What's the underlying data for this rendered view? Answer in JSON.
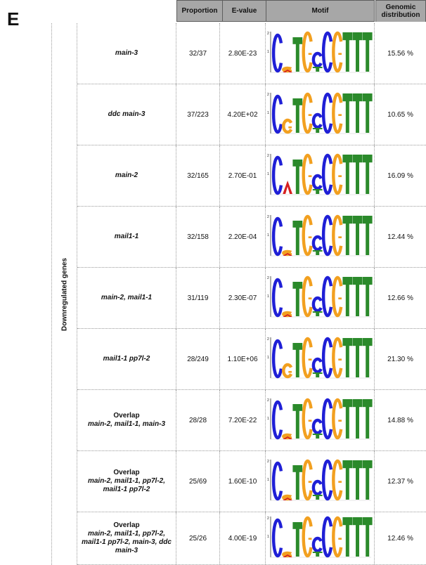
{
  "panel_letter": "E",
  "headers": {
    "proportion": "Proportion",
    "evalue": "E-value",
    "motif": "Motif",
    "genomic_line1": "Genomic",
    "genomic_line2": "distribution"
  },
  "side_label": "Downregulated genes",
  "colors": {
    "C": "#1f1fd6",
    "T": "#2b8a2b",
    "G": "#f2a020",
    "A": "#d62020",
    "header": "#a7a7a7"
  },
  "rows": [
    {
      "title": "",
      "name": "main-3",
      "proportion": "32/37",
      "evalue": "2.80E-23",
      "genomic": "15.56 %",
      "motif": [
        "C",
        "-",
        "T",
        "G",
        "C",
        "C",
        "G",
        "T",
        "T",
        "T"
      ]
    },
    {
      "title": "",
      "name": "ddc main-3",
      "proportion": "37/223",
      "evalue": "4.20E+02",
      "genomic": "10.65 %",
      "motif": [
        "C",
        "G",
        "T",
        "G",
        "C",
        "C",
        "G",
        "T",
        "T",
        "T"
      ]
    },
    {
      "title": "",
      "name": "main-2",
      "proportion": "32/165",
      "evalue": "2.70E-01",
      "genomic": "16.09 %",
      "motif": [
        "C",
        "A",
        "T",
        "G",
        "C",
        "C",
        "G",
        "T",
        "T",
        "T"
      ]
    },
    {
      "title": "",
      "name": "mail1-1",
      "proportion": "32/158",
      "evalue": "2.20E-04",
      "genomic": "12.44 %",
      "motif": [
        "C",
        "-",
        "T",
        "G",
        "C",
        "C",
        "G",
        "T",
        "T",
        "T"
      ]
    },
    {
      "title": "",
      "name": "main-2, mail1-1",
      "proportion": "31/119",
      "evalue": "2.30E-07",
      "genomic": "12.66 %",
      "motif": [
        "C",
        "-",
        "T",
        "G",
        "C",
        "C",
        "G",
        "T",
        "T",
        "T"
      ]
    },
    {
      "title": "",
      "name": "mail1-1 pp7l-2",
      "proportion": "28/249",
      "evalue": "1.10E+06",
      "genomic": "21.30 %",
      "motif": [
        "C",
        "G",
        "T",
        "G",
        "C",
        "C",
        "G",
        "T",
        "T",
        "T"
      ]
    },
    {
      "title": "Overlap",
      "name": "main-2, mail1-1, main-3",
      "proportion": "28/28",
      "evalue": "7.20E-22",
      "genomic": "14.88 %",
      "motif": [
        "C",
        "-",
        "T",
        "G",
        "C",
        "C",
        "G",
        "T",
        "T",
        "T"
      ]
    },
    {
      "title": "Overlap",
      "name": "main-2, mail1-1, pp7l-2, mail1-1 pp7l-2",
      "proportion": "25/69",
      "evalue": "1.60E-10",
      "genomic": "12.37 %",
      "motif": [
        "C",
        "-",
        "T",
        "G",
        "C",
        "C",
        "G",
        "T",
        "T",
        "T"
      ]
    },
    {
      "title": "Overlap",
      "name": "main-2, mail1-1, pp7l-2, mail1-1 pp7l-2, main-3, ddc main-3",
      "proportion": "25/26",
      "evalue": "4.00E-19",
      "genomic": "12.46 %",
      "motif": [
        "C",
        "-",
        "T",
        "G",
        "C",
        "C",
        "G",
        "T",
        "T",
        "T"
      ]
    }
  ]
}
